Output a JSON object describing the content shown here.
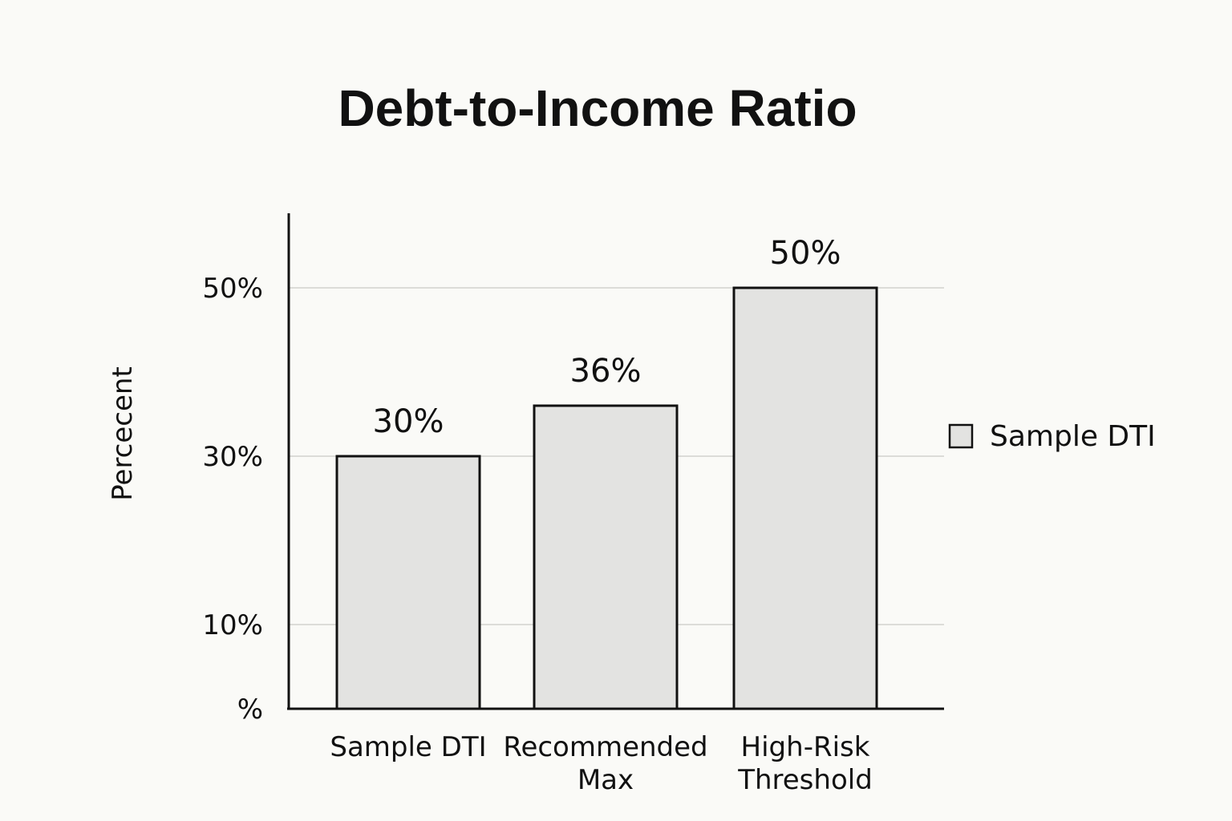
{
  "chart_data": {
    "type": "bar",
    "title": "Debt-to-Income Ratio",
    "ylabel": "Percecent",
    "xlabel": "",
    "categories": [
      "Sample DTI",
      "Recommended Max",
      "High-Risk Threshold"
    ],
    "category_lines": [
      [
        "Sample DTI"
      ],
      [
        "Recommended",
        "Max"
      ],
      [
        "High-Risk",
        "Threshold"
      ]
    ],
    "series": [
      {
        "name": "Sample DTI",
        "values": [
          30,
          36,
          50
        ]
      }
    ],
    "data_labels": [
      "30%",
      "36%",
      "50%"
    ],
    "ytick_values": [
      0,
      10,
      30,
      50
    ],
    "ytick_labels": [
      "%",
      "10%",
      "30%",
      "50%"
    ],
    "ylim": [
      0,
      58
    ],
    "grid": true,
    "legend": {
      "position": "right",
      "entries": [
        "Sample DTI"
      ]
    },
    "colors": {
      "bar_fill": "#e3e3e1",
      "bar_stroke": "#111111",
      "grid": "#dcdcd8",
      "axis": "#111111"
    }
  }
}
